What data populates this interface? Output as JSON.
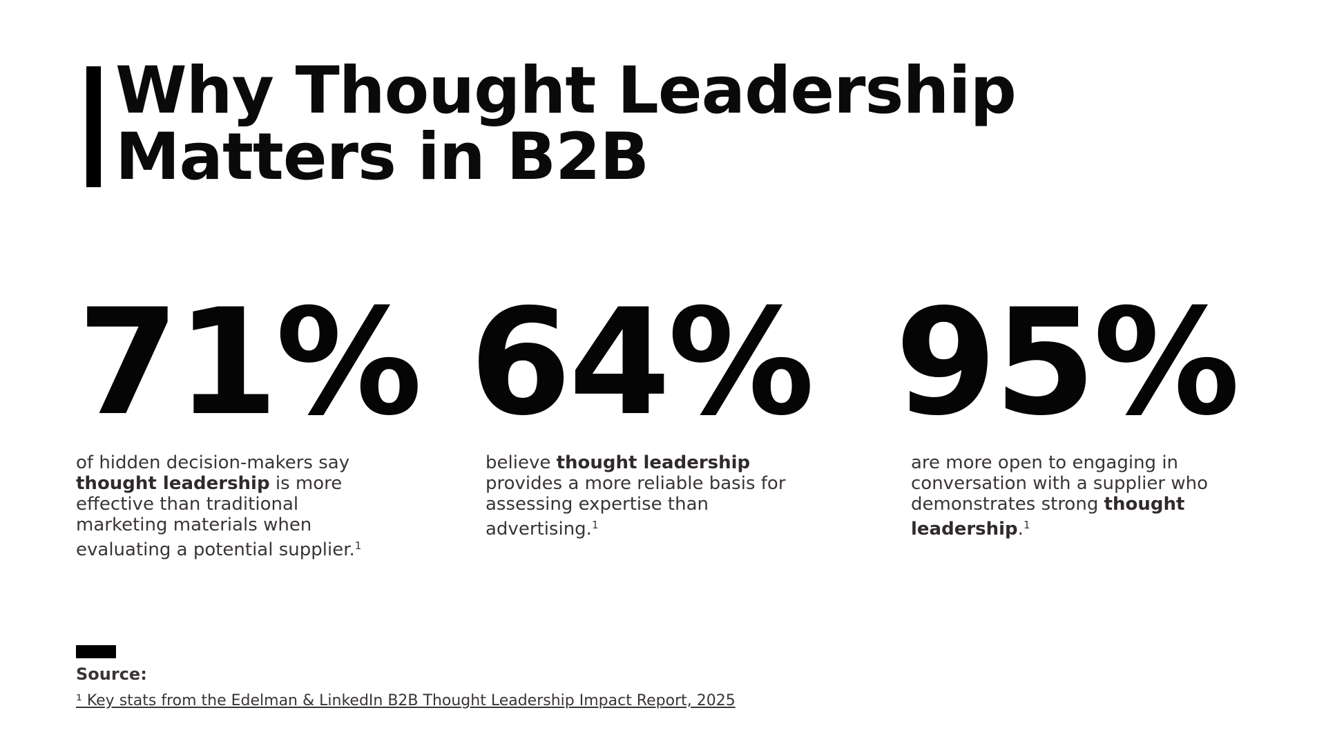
{
  "title": {
    "line1": "Why Thought Leadership",
    "line2": "Matters in B2B"
  },
  "stats": [
    {
      "value": "71%",
      "desc_lines": [
        {
          "pre": "of hidden decision-makers say",
          "bold": "",
          "post": ""
        },
        {
          "pre": "",
          "bold": "thought leadership",
          "post": " is more"
        },
        {
          "pre": "effective than traditional",
          "bold": "",
          "post": ""
        },
        {
          "pre": "marketing materials when",
          "bold": "",
          "post": ""
        },
        {
          "pre": "evaluating a potential supplier.",
          "bold": "",
          "post": "",
          "sup": "1"
        }
      ]
    },
    {
      "value": "64%",
      "desc_lines": [
        {
          "pre": "believe ",
          "bold": "thought leadership",
          "post": ""
        },
        {
          "pre": "provides a more reliable basis for",
          "bold": "",
          "post": ""
        },
        {
          "pre": "assessing expertise than",
          "bold": "",
          "post": ""
        },
        {
          "pre": "advertising.",
          "bold": "",
          "post": "",
          "sup": "1"
        }
      ]
    },
    {
      "value": "95%",
      "desc_lines": [
        {
          "pre": "are more open to engaging in",
          "bold": "",
          "post": ""
        },
        {
          "pre": "conversation with a supplier who",
          "bold": "",
          "post": ""
        },
        {
          "pre": "demonstrates strong ",
          "bold": "thought",
          "post": ""
        },
        {
          "pre": "",
          "bold": "leadership",
          "post": ".",
          "sup": "1"
        }
      ]
    }
  ],
  "source": {
    "label": "Source:",
    "reference": "¹ Key stats from the Edelman & LinkedIn B2B Thought Leadership Impact Report, 2025"
  }
}
